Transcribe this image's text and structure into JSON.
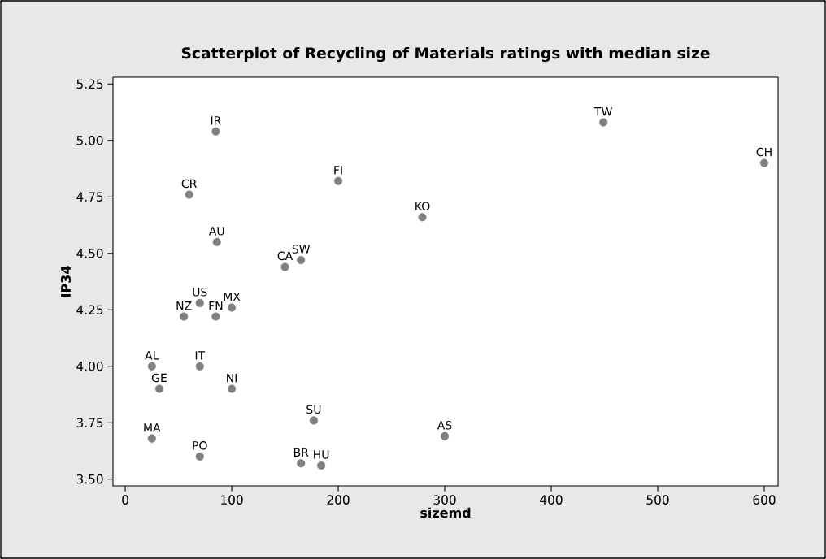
{
  "chart_data": {
    "type": "scatter",
    "title": "Scatterplot of Recycling of Materials ratings with median size",
    "xlabel": "sizemd",
    "ylabel": "IP34",
    "x": [
      85,
      449,
      600,
      200,
      60,
      279,
      86,
      150,
      165,
      70,
      100,
      55,
      85,
      25,
      70,
      32,
      100,
      177,
      300,
      25,
      70,
      165,
      184
    ],
    "values": [
      5.04,
      5.08,
      4.9,
      4.82,
      4.76,
      4.66,
      4.55,
      4.44,
      4.47,
      4.28,
      4.26,
      4.22,
      4.22,
      4.0,
      4.0,
      3.9,
      3.9,
      3.76,
      3.69,
      3.68,
      3.6,
      3.57,
      3.56
    ],
    "color": "#808080",
    "marker": "circle",
    "grid": false,
    "xlim": [
      -11.5,
      613
    ],
    "ylim": [
      3.47,
      5.28
    ],
    "xticks": [
      0,
      100,
      200,
      300,
      400,
      500,
      600
    ],
    "yticks": [
      {
        "value": 3.5,
        "label": "3.50"
      },
      {
        "value": 3.75,
        "label": "3.75"
      },
      {
        "value": 4.0,
        "label": "4.00"
      },
      {
        "value": 4.25,
        "label": "4.25"
      },
      {
        "value": 4.5,
        "label": "4.50"
      },
      {
        "value": 4.75,
        "label": "4.75"
      },
      {
        "value": 5.0,
        "label": "5.00"
      },
      {
        "value": 5.25,
        "label": "5.25"
      }
    ],
    "annotations": [
      {
        "text": "IR",
        "x": 85,
        "y": 5.04
      },
      {
        "text": "TW",
        "x": 449,
        "y": 5.08
      },
      {
        "text": "CH",
        "x": 600,
        "y": 4.9
      },
      {
        "text": "FI",
        "x": 200,
        "y": 4.82
      },
      {
        "text": "CR",
        "x": 60,
        "y": 4.76
      },
      {
        "text": "KO",
        "x": 279,
        "y": 4.66
      },
      {
        "text": "AU",
        "x": 86,
        "y": 4.55
      },
      {
        "text": "CA",
        "x": 150,
        "y": 4.44
      },
      {
        "text": "SW",
        "x": 165,
        "y": 4.47
      },
      {
        "text": "US",
        "x": 70,
        "y": 4.28
      },
      {
        "text": "MX",
        "x": 100,
        "y": 4.26
      },
      {
        "text": "NZ",
        "x": 55,
        "y": 4.22
      },
      {
        "text": "FN",
        "x": 85,
        "y": 4.22
      },
      {
        "text": "AL",
        "x": 25,
        "y": 4.0
      },
      {
        "text": "IT",
        "x": 70,
        "y": 4.0
      },
      {
        "text": "GE",
        "x": 32,
        "y": 3.9
      },
      {
        "text": "NI",
        "x": 100,
        "y": 3.9
      },
      {
        "text": "SU",
        "x": 177,
        "y": 3.76
      },
      {
        "text": "AS",
        "x": 300,
        "y": 3.69
      },
      {
        "text": "MA",
        "x": 25,
        "y": 3.68
      },
      {
        "text": "PO",
        "x": 70,
        "y": 3.6
      },
      {
        "text": "BR",
        "x": 165,
        "y": 3.57
      },
      {
        "text": "HU",
        "x": 184,
        "y": 3.56
      }
    ]
  }
}
